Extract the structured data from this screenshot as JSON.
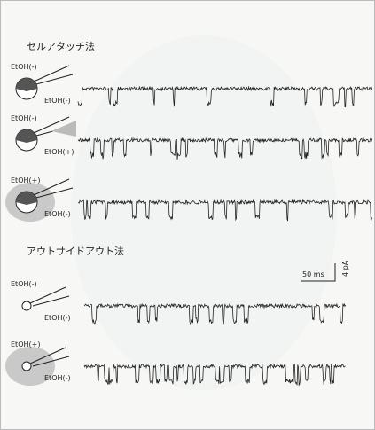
{
  "sections": [
    {
      "title": "セルアタッチ法",
      "rows": [
        {
          "labels": [
            "EtOH(-)",
            "EtOH(-)"
          ]
        },
        {
          "labels": [
            "EtOH(-)",
            "EtOH(+)"
          ]
        },
        {
          "labels": [
            "EtOH(+)",
            "EtOH(-)"
          ]
        }
      ]
    },
    {
      "title": "アウトサイドアウト法",
      "rows": [
        {
          "labels": [
            "EtOH(-)",
            "EtOH(-)"
          ]
        },
        {
          "labels": [
            "EtOH(+)",
            "EtOH(-)"
          ]
        }
      ]
    }
  ],
  "scale_bar": {
    "time": "50 ms",
    "current": "4 pA"
  }
}
